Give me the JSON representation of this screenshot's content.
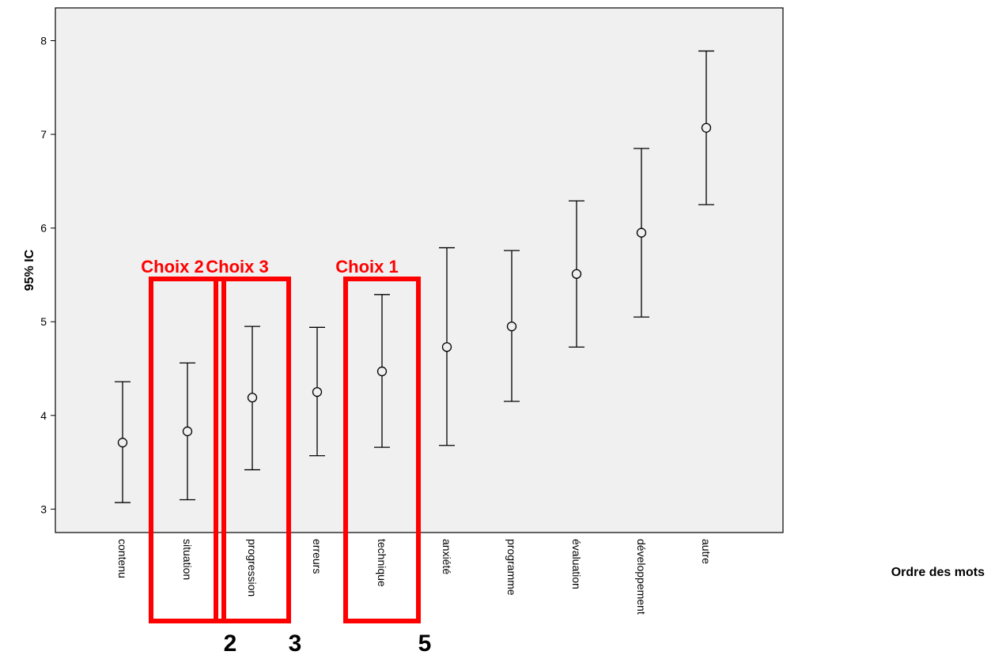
{
  "chart_data": {
    "type": "errorbar",
    "categories": [
      "contenu",
      "situation",
      "progression",
      "erreurs",
      "technique",
      "anxiété",
      "programme",
      "évaluation",
      "développement",
      "autre"
    ],
    "series": [
      {
        "mean": [
          3.71,
          3.83,
          4.19,
          4.25,
          4.47,
          4.73,
          4.95,
          5.51,
          5.95,
          7.07
        ],
        "lower": [
          3.07,
          3.1,
          3.42,
          3.57,
          3.66,
          3.68,
          4.15,
          4.73,
          5.05,
          6.25
        ],
        "upper": [
          4.36,
          4.56,
          4.95,
          4.94,
          5.29,
          5.79,
          5.76,
          6.29,
          6.85,
          7.89
        ]
      }
    ],
    "ylabel": "95% IC",
    "xlabel": "Ordre des mots",
    "ylim": [
      2.75,
      8.35
    ],
    "yticks": [
      3,
      4,
      5,
      6,
      7,
      8
    ],
    "grid": false,
    "plot_background": "#f0f0f0",
    "annotations": [
      {
        "label": "Choix 2",
        "categories": [
          "situation"
        ],
        "number": "2"
      },
      {
        "label": "Choix 3",
        "categories": [
          "progression"
        ],
        "number": "3"
      },
      {
        "label": "Choix 1",
        "categories": [
          "technique"
        ],
        "number": "5"
      }
    ],
    "annotation_color": "#ff0000"
  }
}
